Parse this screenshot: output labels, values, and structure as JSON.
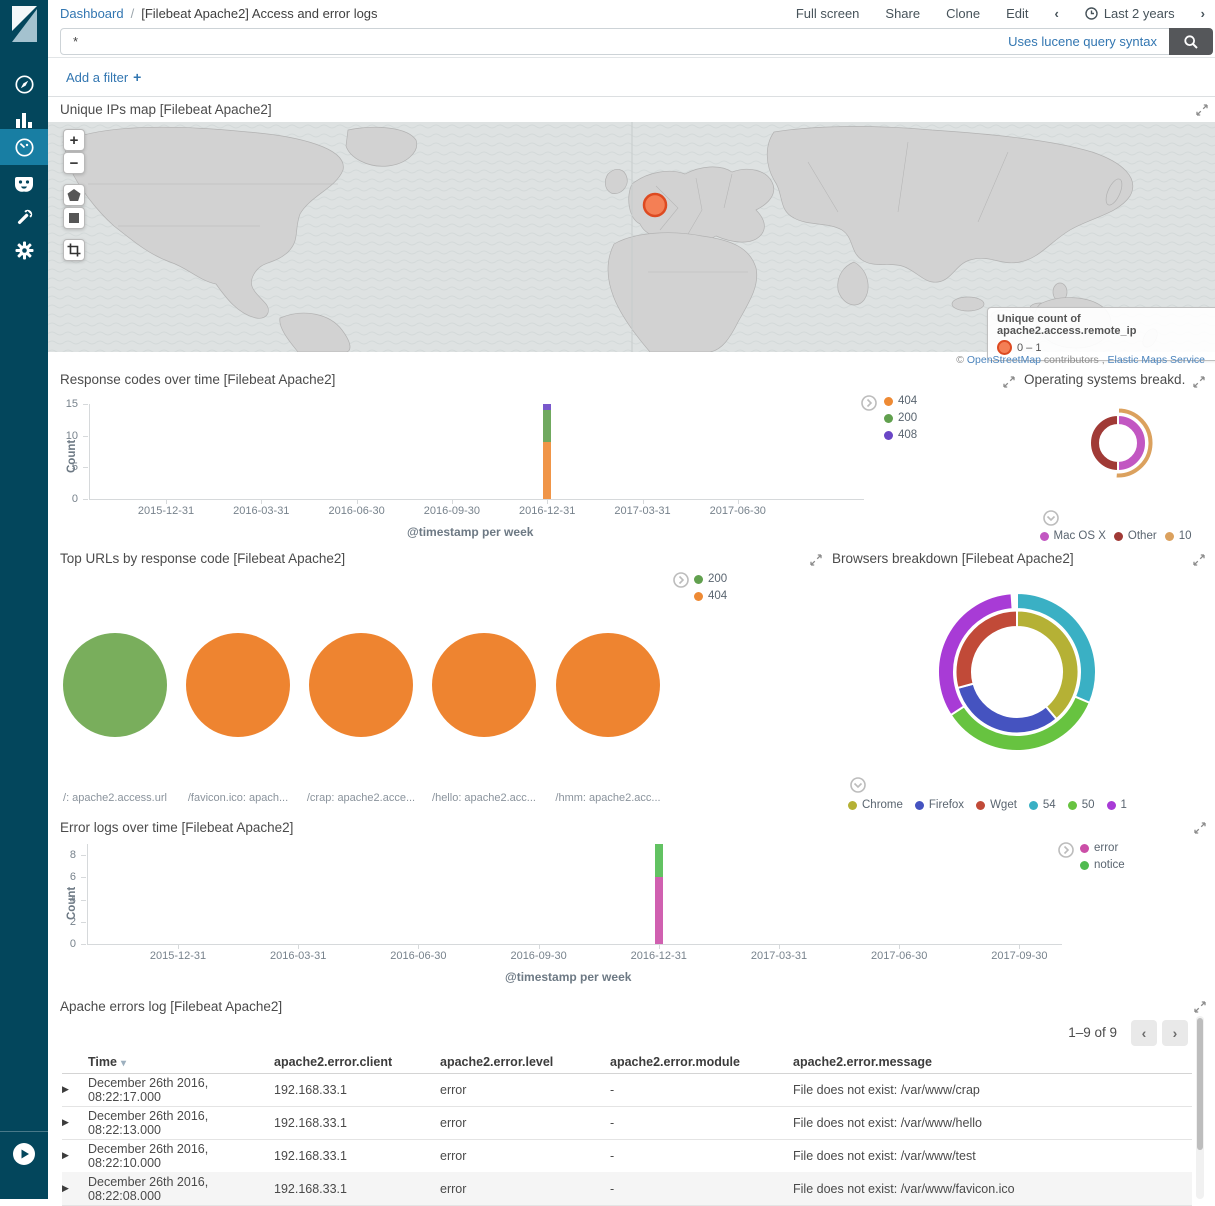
{
  "topnav": {
    "breadcrumb_link": "Dashboard",
    "breadcrumb_sep": "/",
    "breadcrumb_title": "[Filebeat Apache2] Access and error logs",
    "full_screen": "Full screen",
    "share": "Share",
    "clone": "Clone",
    "edit": "Edit",
    "time_label": "Last 2 years"
  },
  "search": {
    "value": "*",
    "hint": "Uses lucene query syntax"
  },
  "filter": {
    "add_label": "Add a filter",
    "plus": "+"
  },
  "sidebar": {
    "icons": [
      "kibana-logo",
      "discover-compass",
      "visualize-bar-chart",
      "dashboard-gauge",
      "timelion-face",
      "dev-tools-wrench",
      "management-gear",
      "collapse-play"
    ]
  },
  "map": {
    "title": "Unique IPs map [Filebeat Apache2]",
    "legend_title": "Unique count of apache2.access.remote_ip",
    "legend_range": "0 – 1",
    "marker_color": "#f47f55",
    "controls": {
      "zoom_in": "+",
      "zoom_out": "−"
    },
    "attribution": {
      "prefix": "© ",
      "link_osm": "OpenStreetMap",
      "middle": " contributors , ",
      "link_ems": "Elastic Maps Service"
    }
  },
  "chart_data": [
    {
      "id": "response_codes",
      "type": "bar",
      "stacked": true,
      "title": "Response codes over time [Filebeat Apache2]",
      "xlabel": "@timestamp per week",
      "ylabel": "Count",
      "ylim": [
        0,
        15
      ],
      "yticks": [
        0,
        5,
        10,
        15
      ],
      "categories": [
        "2015-12-31",
        "2016-03-31",
        "2016-06-30",
        "2016-09-30",
        "2016-12-31",
        "2017-03-31",
        "2017-06-30"
      ],
      "series": [
        {
          "name": "404",
          "color": "#ee8a34",
          "values": [
            0,
            0,
            0,
            0,
            9,
            0,
            0
          ]
        },
        {
          "name": "200",
          "color": "#61a04e",
          "values": [
            0,
            0,
            0,
            0,
            5,
            0,
            0
          ]
        },
        {
          "name": "408",
          "color": "#6a46c6",
          "values": [
            0,
            0,
            0,
            0,
            1,
            0,
            0
          ]
        }
      ],
      "legend_position": "right"
    },
    {
      "id": "os_breakdown",
      "type": "donut",
      "title": "Operating systems breakd...",
      "rings": {
        "inner": [
          {
            "label": "Mac OS X",
            "color": "#c257c2",
            "start": 0,
            "end": 180,
            "value": 1
          },
          {
            "label": "Other",
            "color": "#a03a36",
            "start": 180,
            "end": 360,
            "value": 1
          }
        ],
        "outer": [
          {
            "label": "10",
            "color": "#dba15e",
            "start": 0,
            "end": 184,
            "value": 1
          }
        ]
      },
      "legend": [
        {
          "label": "Mac OS X",
          "color": "#c257c2"
        },
        {
          "label": "Other",
          "color": "#a03a36"
        },
        {
          "label": "10",
          "color": "#dba15e"
        }
      ]
    },
    {
      "id": "top_urls",
      "type": "pie",
      "title": "Top URLs by response code [Filebeat Apache2]",
      "legend": [
        {
          "label": "200",
          "color": "#61a04e"
        },
        {
          "label": "404",
          "color": "#ee8a34"
        }
      ],
      "pies": [
        {
          "label": "/: apache2.access.url",
          "slice": "200",
          "color": "#79ae5c",
          "value": 1
        },
        {
          "label": "/favicon.ico: apach...",
          "slice": "404",
          "color": "#ee8430",
          "value": 1
        },
        {
          "label": "/crap: apache2.acce...",
          "slice": "404",
          "color": "#ee8430",
          "value": 1
        },
        {
          "label": "/hello: apache2.acc...",
          "slice": "404",
          "color": "#ee8430",
          "value": 1
        },
        {
          "label": "/hmm: apache2.acc...",
          "slice": "404",
          "color": "#ee8430",
          "value": 1
        }
      ]
    },
    {
      "id": "browsers",
      "type": "donut",
      "title": "Browsers breakdown [Filebeat Apache2]",
      "rings": {
        "inner": [
          {
            "label": "Chrome",
            "color": "#b5b135",
            "start": 0,
            "end": 140,
            "value": 1
          },
          {
            "label": "Firefox",
            "color": "#4553c0",
            "start": 140,
            "end": 255,
            "value": 1
          },
          {
            "label": "Wget",
            "color": "#c14a38",
            "start": 255,
            "end": 360,
            "value": 1
          }
        ],
        "outer": [
          {
            "label": "54",
            "color": "#3ab0c4",
            "start": 0,
            "end": 113,
            "value": 1
          },
          {
            "label": "50",
            "color": "#67c340",
            "start": 113,
            "end": 237,
            "value": 1
          },
          {
            "label": "1",
            "color": "#a83bd6",
            "start": 237,
            "end": 356,
            "value": 1
          }
        ]
      },
      "legend": [
        {
          "label": "Chrome",
          "color": "#b5b135"
        },
        {
          "label": "Firefox",
          "color": "#4553c0"
        },
        {
          "label": "Wget",
          "color": "#c14a38"
        },
        {
          "label": "54",
          "color": "#3ab0c4"
        },
        {
          "label": "50",
          "color": "#67c340"
        },
        {
          "label": "1",
          "color": "#a83bd6"
        }
      ]
    },
    {
      "id": "error_logs",
      "type": "bar",
      "stacked": true,
      "title": "Error logs over time [Filebeat Apache2]",
      "xlabel": "@timestamp per week",
      "ylabel": "Count",
      "ylim": [
        0,
        9
      ],
      "yticks": [
        0,
        2,
        4,
        6,
        8
      ],
      "categories": [
        "2015-12-31",
        "2016-03-31",
        "2016-06-30",
        "2016-09-30",
        "2016-12-31",
        "2017-03-31",
        "2017-06-30",
        "2017-09-30"
      ],
      "series": [
        {
          "name": "error",
          "color": "#cb4fa7",
          "values": [
            0,
            0,
            0,
            0,
            6,
            0,
            0,
            0
          ]
        },
        {
          "name": "notice",
          "color": "#51bb51",
          "values": [
            0,
            0,
            0,
            0,
            3,
            0,
            0,
            0
          ]
        }
      ],
      "legend_position": "right"
    }
  ],
  "table": {
    "title": "Apache errors log [Filebeat Apache2]",
    "pagination": "1–9 of 9",
    "columns": [
      {
        "label": "Time",
        "sortable": true
      },
      {
        "label": "apache2.error.client"
      },
      {
        "label": "apache2.error.level"
      },
      {
        "label": "apache2.error.module"
      },
      {
        "label": "apache2.error.message"
      }
    ],
    "rows": [
      {
        "time": "December 26th 2016, 08:22:17.000",
        "client": "192.168.33.1",
        "level": "error",
        "module": "-",
        "message": "File does not exist: /var/www/crap"
      },
      {
        "time": "December 26th 2016, 08:22:13.000",
        "client": "192.168.33.1",
        "level": "error",
        "module": "-",
        "message": "File does not exist: /var/www/hello"
      },
      {
        "time": "December 26th 2016, 08:22:10.000",
        "client": "192.168.33.1",
        "level": "error",
        "module": "-",
        "message": "File does not exist: /var/www/test"
      },
      {
        "time": "December 26th 2016, 08:22:08.000",
        "client": "192.168.33.1",
        "level": "error",
        "module": "-",
        "message": "File does not exist: /var/www/favicon.ico"
      }
    ]
  }
}
